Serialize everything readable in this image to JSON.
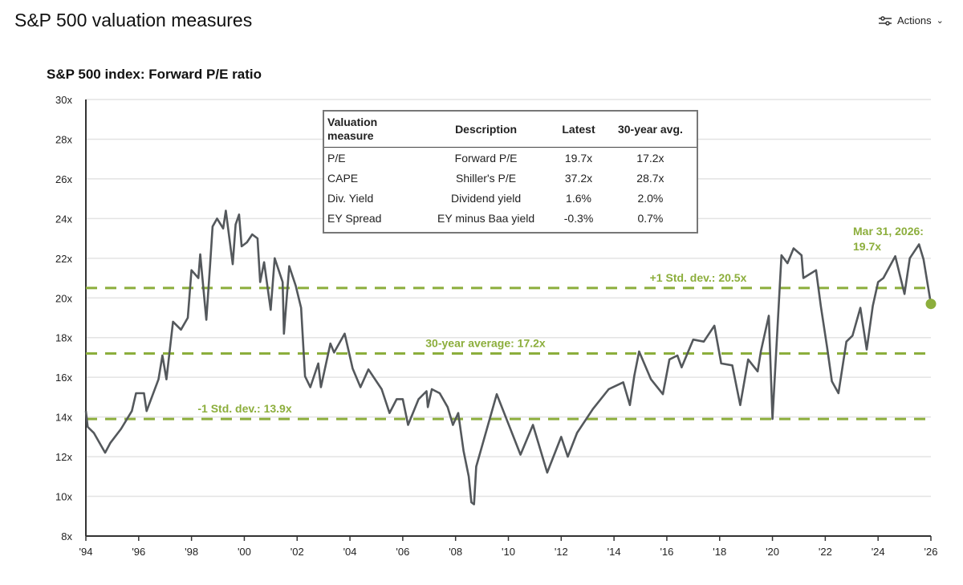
{
  "header": {
    "title": "S&P 500 valuation measures",
    "actions_label": "Actions",
    "actions_icon": "sliders-icon",
    "chevron_icon": "chevron-down-icon"
  },
  "colors": {
    "line": "#54585c",
    "accent": "#8cae3c",
    "grid": "#e3e3e3"
  },
  "table": {
    "headers": [
      "Valuation measure",
      "Description",
      "Latest",
      "30-year avg."
    ],
    "rows": [
      [
        "P/E",
        "Forward P/E",
        "19.7x",
        "17.2x"
      ],
      [
        "CAPE",
        "Shiller's P/E",
        "37.2x",
        "28.7x"
      ],
      [
        "Div. Yield",
        "Dividend yield",
        "1.6%",
        "2.0%"
      ],
      [
        "EY Spread",
        "EY minus Baa yield",
        "-0.3%",
        "0.7%"
      ]
    ]
  },
  "chart_data": {
    "type": "line",
    "title": "S&P 500 index: Forward P/E ratio",
    "xlim": [
      1994,
      2026
    ],
    "ylim": [
      8,
      30
    ],
    "grid": true,
    "x_ticks": [
      "'94",
      "'96",
      "'98",
      "'00",
      "'02",
      "'04",
      "'06",
      "'08",
      "'10",
      "'12",
      "'14",
      "'16",
      "'18",
      "'20",
      "'22",
      "'24",
      "'26"
    ],
    "y_ticks": [
      "8x",
      "10x",
      "12x",
      "14x",
      "16x",
      "18x",
      "20x",
      "22x",
      "24x",
      "26x",
      "28x",
      "30x"
    ],
    "reference_lines": [
      {
        "label": "+1 Std. dev.: 20.5x",
        "value": 20.5
      },
      {
        "label": "30-year average: 17.2x",
        "value": 17.2
      },
      {
        "label": "-1 Std. dev.: 13.9x",
        "value": 13.9
      }
    ],
    "latest": {
      "label_date": "Mar 31, 2026:",
      "label_value": "19.7x",
      "x": 2026.0,
      "y": 19.7
    },
    "series": [
      {
        "x": [
          1994,
          1994.07,
          1994.3,
          1994.73,
          1994.93,
          1995.33,
          1995.74,
          1995.9,
          1996.2,
          1996.3,
          1996.75,
          1996.9,
          1997.05,
          1997.3,
          1997.6,
          1997.86,
          1998.0,
          1998.26,
          1998.33,
          1998.56,
          1998.7,
          1998.8,
          1998.97,
          1999.2,
          1999.3,
          1999.56,
          1999.67,
          1999.8,
          1999.9,
          2000.1,
          2000.3,
          2000.5,
          2000.6,
          2000.75,
          2001.0,
          2001.15,
          2001.45,
          2001.5,
          2001.7,
          2001.95,
          2002.15,
          2002.3,
          2002.5,
          2002.8,
          2002.9,
          2003.26,
          2003.4,
          2003.8,
          2004.1,
          2004.4,
          2004.7,
          2005.2,
          2005.5,
          2005.77,
          2006.0,
          2006.2,
          2006.6,
          2006.9,
          2006.95,
          2007.1,
          2007.4,
          2007.7,
          2007.9,
          2008.1,
          2008.3,
          2008.5,
          2008.6,
          2008.7,
          2008.78,
          2009.56,
          2010.46,
          2010.93,
          2011.47,
          2012.0,
          2012.25,
          2012.6,
          2013.2,
          2013.8,
          2014.35,
          2014.6,
          2014.77,
          2014.95,
          2015.4,
          2015.85,
          2016.1,
          2016.4,
          2016.56,
          2017.0,
          2017.4,
          2017.8,
          2018.06,
          2018.48,
          2018.78,
          2019.08,
          2019.44,
          2019.56,
          2019.86,
          2020.0,
          2020.34,
          2020.57,
          2020.8,
          2021.1,
          2021.17,
          2021.65,
          2021.83,
          2022.07,
          2022.25,
          2022.5,
          2022.8,
          2023.03,
          2023.33,
          2023.57,
          2023.8,
          2024.0,
          2024.2,
          2024.65,
          2025.0,
          2025.2,
          2025.55,
          2025.72,
          2026.0
        ],
        "y": [
          14.3,
          13.5,
          13.2,
          12.2,
          12.7,
          13.4,
          14.3,
          15.2,
          15.2,
          14.3,
          15.9,
          17.1,
          15.9,
          18.8,
          18.4,
          19.0,
          21.4,
          21.0,
          22.2,
          18.9,
          21.6,
          23.6,
          24.0,
          23.5,
          24.4,
          21.7,
          23.7,
          24.2,
          22.6,
          22.8,
          23.2,
          23.0,
          20.8,
          21.8,
          19.4,
          22.0,
          20.8,
          18.2,
          21.6,
          20.6,
          19.5,
          16.05,
          15.5,
          16.7,
          15.5,
          17.7,
          17.25,
          18.2,
          16.45,
          15.5,
          16.4,
          15.4,
          14.2,
          14.9,
          14.9,
          13.6,
          14.9,
          15.3,
          14.5,
          15.4,
          15.2,
          14.5,
          13.6,
          14.2,
          12.3,
          11.0,
          9.7,
          9.6,
          11.5,
          15.15,
          12.1,
          13.6,
          11.2,
          13.0,
          12.0,
          13.2,
          14.4,
          15.4,
          15.75,
          14.6,
          16.1,
          17.3,
          15.9,
          15.15,
          16.9,
          17.1,
          16.5,
          17.9,
          17.8,
          18.6,
          16.7,
          16.6,
          14.6,
          16.9,
          16.3,
          17.3,
          19.1,
          13.9,
          22.15,
          21.75,
          22.5,
          22.15,
          21.0,
          21.4,
          19.6,
          17.5,
          15.8,
          15.2,
          17.8,
          18.1,
          19.5,
          17.4,
          19.6,
          20.8,
          21.0,
          22.1,
          20.2,
          22.0,
          22.7,
          21.95,
          19.7
        ]
      }
    ]
  }
}
